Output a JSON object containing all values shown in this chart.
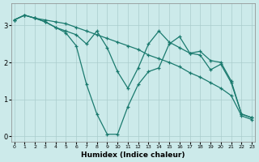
{
  "bg_color": "#cceaea",
  "grid_color": "#aacccc",
  "line_color": "#1a7a6e",
  "xlabel": "Humidex (Indice chaleur)",
  "line1_x": [
    0,
    1,
    2,
    3,
    4,
    5,
    6,
    7,
    8,
    9,
    10,
    11,
    12,
    13,
    14,
    15,
    16,
    17,
    18,
    19,
    20,
    21,
    22,
    23
  ],
  "line1_y": [
    3.15,
    3.28,
    3.2,
    3.15,
    3.1,
    3.05,
    2.95,
    2.85,
    2.75,
    2.65,
    2.55,
    2.45,
    2.35,
    2.2,
    2.1,
    2.0,
    1.88,
    1.72,
    1.6,
    1.45,
    1.3,
    1.1,
    0.55,
    0.45
  ],
  "line2_x": [
    0,
    1,
    2,
    3,
    4,
    5,
    6,
    7,
    8,
    9,
    10,
    11,
    12,
    13,
    14,
    15,
    16,
    17,
    18,
    19,
    20,
    21,
    22,
    23
  ],
  "line2_y": [
    3.15,
    3.28,
    3.2,
    3.1,
    2.95,
    2.85,
    2.75,
    2.5,
    2.85,
    2.4,
    1.75,
    1.3,
    1.85,
    2.5,
    2.85,
    2.55,
    2.4,
    2.25,
    2.3,
    2.05,
    2.0,
    1.5,
    0.6,
    0.5
  ],
  "line3_x": [
    0,
    1,
    2,
    3,
    4,
    5,
    6,
    7,
    8,
    9,
    10,
    11,
    12,
    13,
    14,
    15,
    16,
    17,
    18,
    19,
    20,
    21,
    22,
    23
  ],
  "line3_y": [
    3.15,
    3.28,
    3.2,
    3.1,
    2.95,
    2.8,
    2.45,
    1.4,
    0.6,
    0.05,
    0.05,
    0.8,
    1.4,
    1.75,
    1.85,
    2.5,
    2.7,
    2.25,
    2.2,
    1.8,
    1.95,
    1.45,
    0.6,
    0.5
  ],
  "xlim": [
    -0.3,
    23.3
  ],
  "ylim": [
    -0.15,
    3.6
  ],
  "xticks": [
    0,
    1,
    2,
    3,
    4,
    5,
    6,
    7,
    8,
    9,
    10,
    11,
    12,
    13,
    14,
    15,
    16,
    17,
    18,
    19,
    20,
    21,
    22,
    23
  ],
  "yticks": [
    0,
    1,
    2,
    3
  ]
}
